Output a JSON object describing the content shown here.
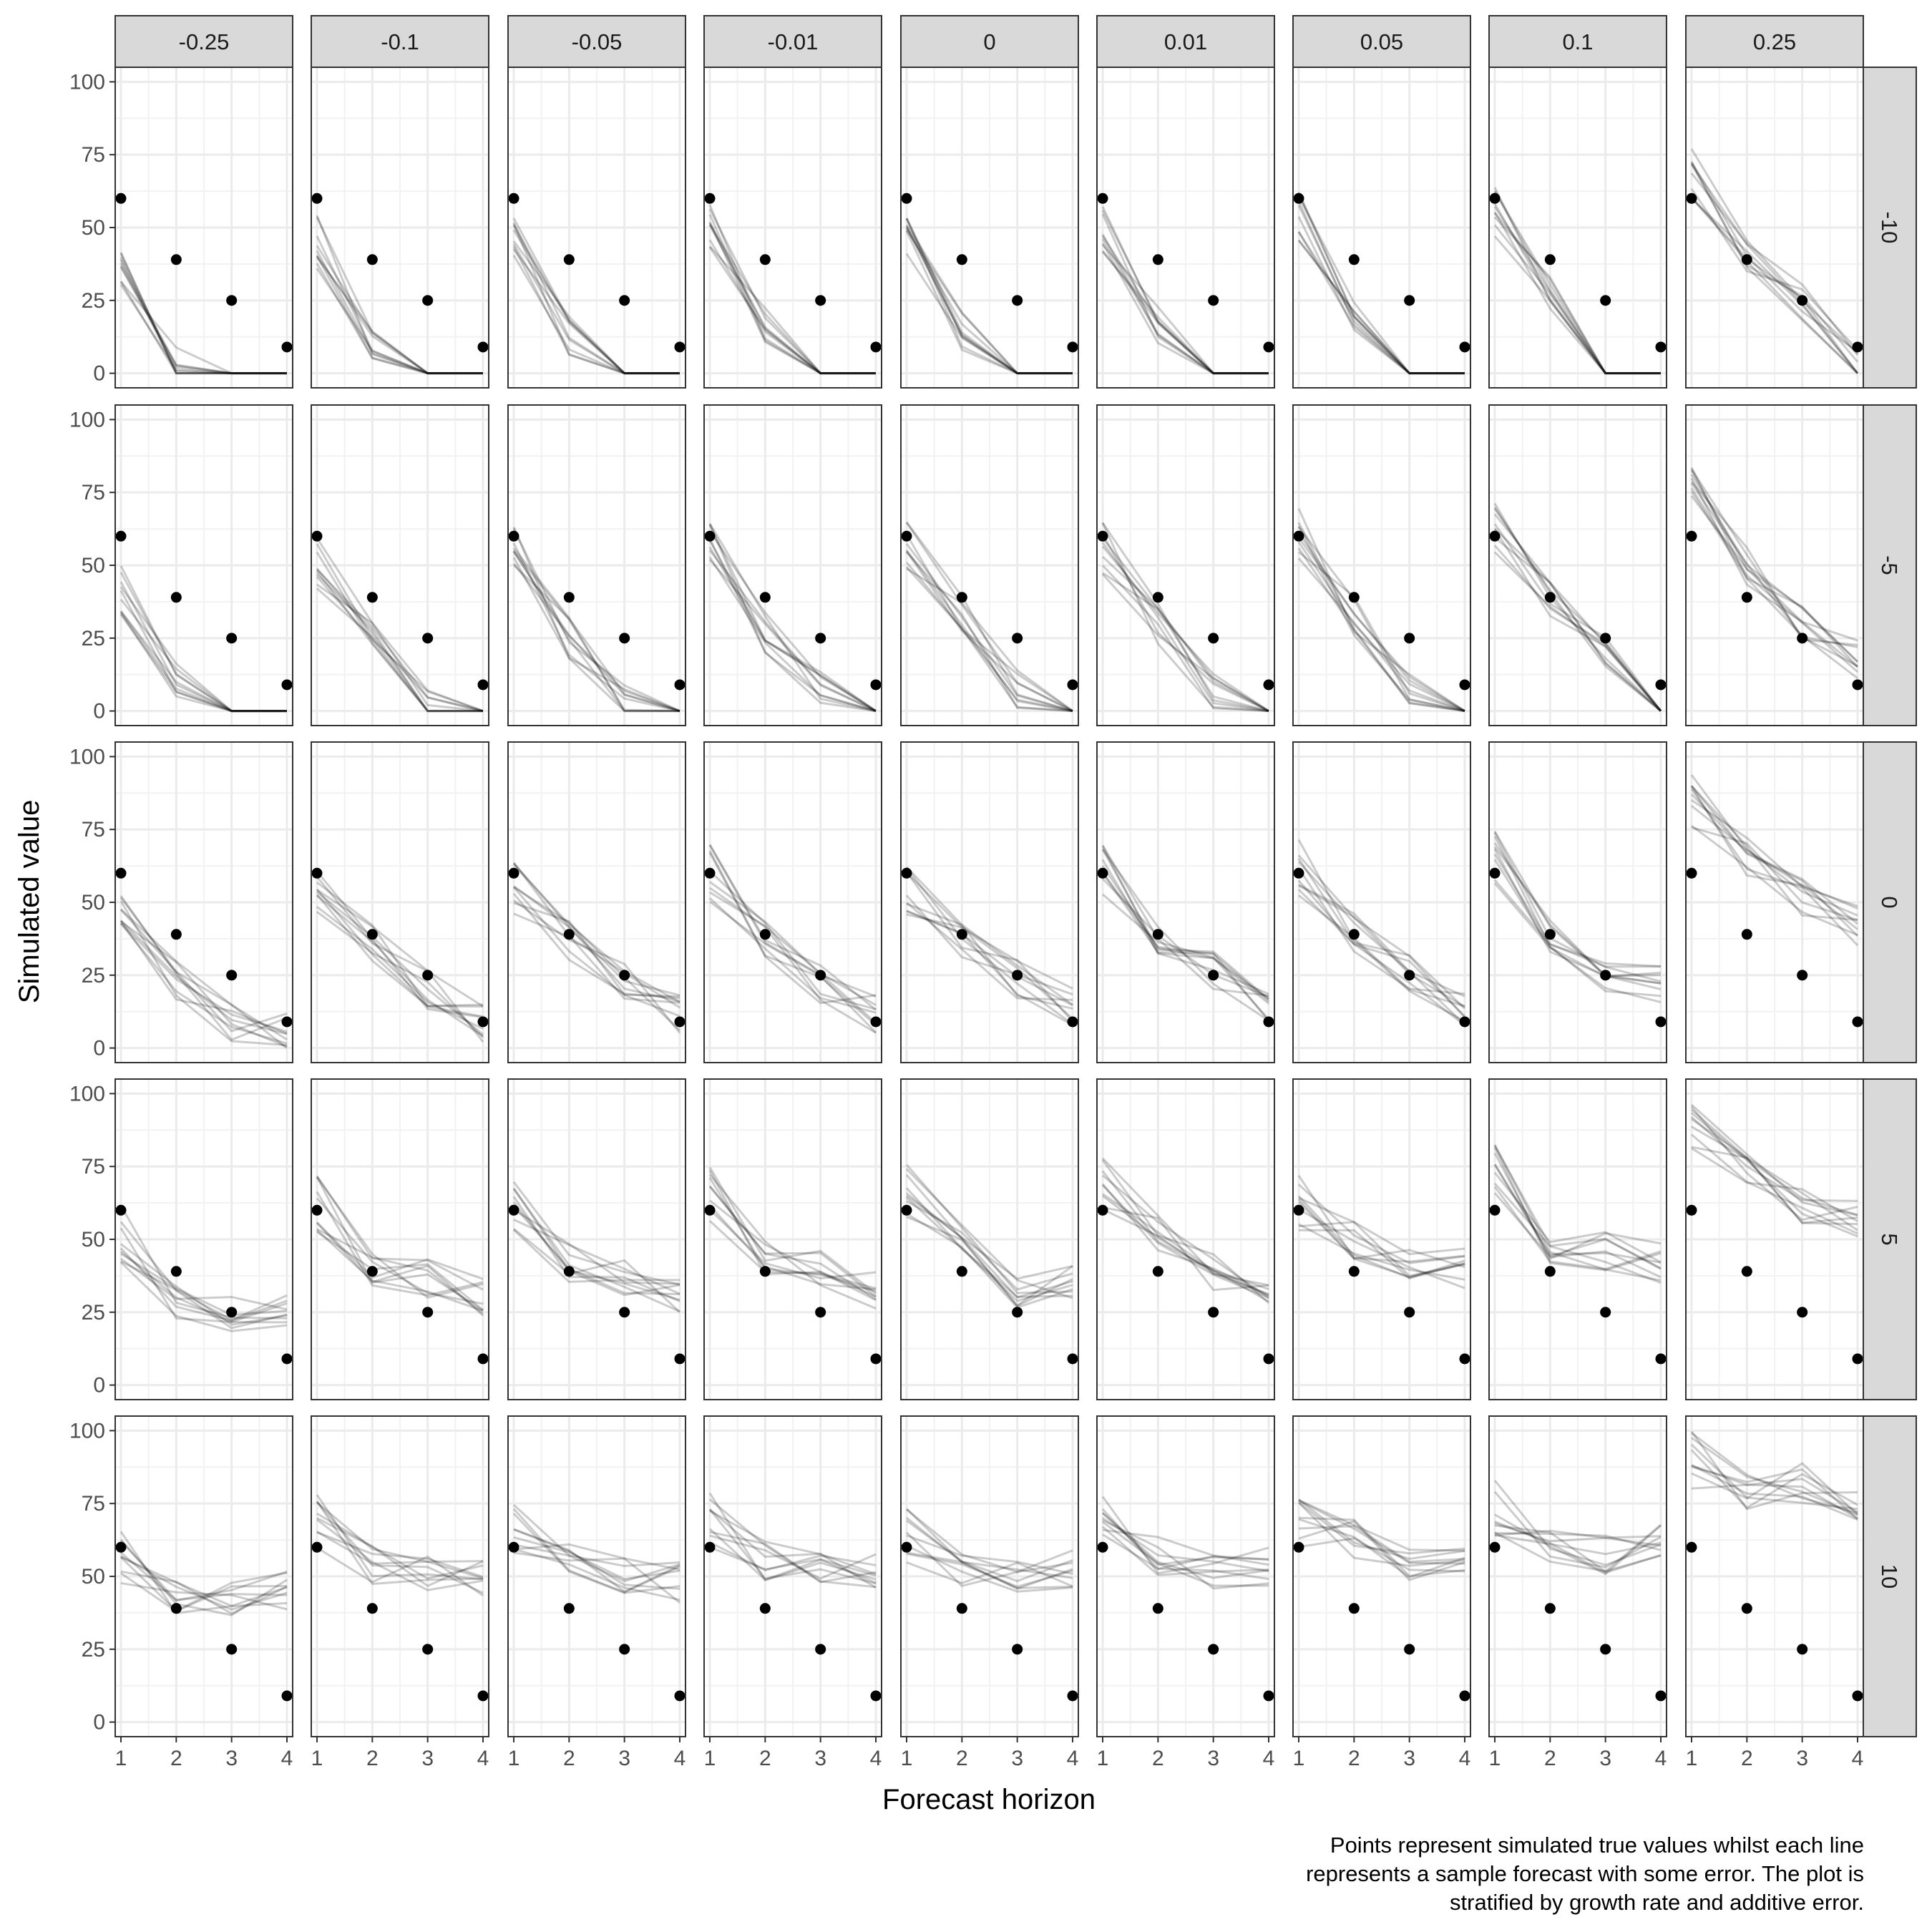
{
  "chart_data": {
    "type": "line",
    "title": "",
    "xlabel": "Forecast horizon",
    "ylabel": "Simulated value",
    "caption": [
      "Points represent simulated true values whilst each line",
      "represents a sample forecast with some error. The plot is",
      "stratified by growth rate and additive error."
    ],
    "facet_cols": [
      "-0.25",
      "-0.1",
      "-0.05",
      "-0.01",
      "0",
      "0.01",
      "0.05",
      "0.1",
      "0.25"
    ],
    "facet_rows": [
      "-10",
      "-5",
      "0",
      "5",
      "10"
    ],
    "x_ticks": [
      1,
      2,
      3,
      4
    ],
    "y_ticks": [
      0,
      25,
      50,
      75,
      100
    ],
    "xlim": [
      1,
      4
    ],
    "ylim": [
      0,
      100
    ],
    "grid": true,
    "truth": {
      "x": [
        1,
        2,
        3,
        4
      ],
      "y": [
        60,
        39,
        25,
        9
      ]
    },
    "samples_per_panel": 10,
    "series_description": "Semi-transparent grey sample forecast lines and black truth points",
    "panel_forecast_mean": [
      [
        [
          38,
          2,
          0,
          0
        ],
        [
          45,
          9,
          0,
          0
        ],
        [
          50,
          13,
          0,
          0
        ],
        [
          52,
          17,
          0,
          0
        ],
        [
          50,
          14,
          0,
          0
        ],
        [
          48,
          17,
          0,
          0
        ],
        [
          53,
          18,
          0,
          0
        ],
        [
          56,
          27,
          0,
          0
        ],
        [
          70,
          42,
          24,
          1
        ]
      ],
      [
        [
          42,
          10,
          0,
          0
        ],
        [
          50,
          26,
          1,
          0
        ],
        [
          60,
          25,
          4,
          0
        ],
        [
          55,
          27,
          8,
          0
        ],
        [
          58,
          33,
          7,
          0
        ],
        [
          55,
          30,
          7,
          0
        ],
        [
          60,
          33,
          8,
          0
        ],
        [
          64,
          38,
          21,
          0
        ],
        [
          74,
          50,
          31,
          18
        ]
      ],
      [
        [
          48,
          23,
          9,
          5
        ],
        [
          54,
          36,
          20,
          9
        ],
        [
          56,
          37,
          22,
          12
        ],
        [
          60,
          38,
          22,
          12
        ],
        [
          54,
          38,
          24,
          14
        ],
        [
          60,
          38,
          27,
          13
        ],
        [
          62,
          40,
          25,
          14
        ],
        [
          65,
          40,
          25,
          22
        ],
        [
          84,
          66,
          52,
          42
        ]
      ],
      [
        [
          52,
          28,
          25,
          27
        ],
        [
          62,
          40,
          37,
          30
        ],
        [
          63,
          42,
          37,
          32
        ],
        [
          65,
          45,
          40,
          33
        ],
        [
          66,
          52,
          32,
          34
        ],
        [
          68,
          52,
          38,
          33
        ],
        [
          62,
          50,
          42,
          40
        ],
        [
          73,
          48,
          46,
          42
        ],
        [
          88,
          74,
          62,
          58
        ]
      ],
      [
        [
          57,
          44,
          42,
          45
        ],
        [
          68,
          54,
          52,
          50
        ],
        [
          66,
          55,
          50,
          48
        ],
        [
          70,
          55,
          53,
          52
        ],
        [
          64,
          52,
          50,
          53
        ],
        [
          74,
          57,
          52,
          53
        ],
        [
          70,
          63,
          55,
          55
        ],
        [
          74,
          62,
          57,
          62
        ],
        [
          90,
          80,
          82,
          76
        ]
      ]
    ]
  }
}
